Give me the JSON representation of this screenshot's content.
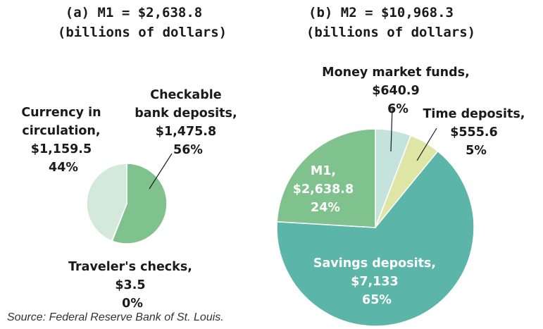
{
  "chart_data": [
    {
      "type": "pie",
      "title": "(a) M1 = $2,638.8",
      "subtitle": "(billions of dollars)",
      "slices": [
        {
          "label": "Checkable bank deposits,",
          "value": 1475.8,
          "value_text": "$1,475.8",
          "pct_text": "56%",
          "color": "#7fc28e"
        },
        {
          "label": "Traveler's checks,",
          "value": 3.5,
          "value_text": "$3.5",
          "pct_text": "0%",
          "color": "#5a8f68"
        },
        {
          "label": "Currency in circulation,",
          "value": 1159.5,
          "value_text": "$1,159.5",
          "pct_text": "44%",
          "color": "#d3eadb"
        }
      ],
      "label_lines": {
        "checkable": [
          "Checkable",
          "bank deposits,",
          "$1,475.8",
          "56%"
        ],
        "travelers": [
          "Traveler's checks,",
          "$3.5",
          "0%"
        ],
        "currency": [
          "Currency in",
          "circulation,",
          "$1,159.5",
          "44%"
        ]
      }
    },
    {
      "type": "pie",
      "title": "(b) M2 = $10,968.3",
      "subtitle": "(billions of dollars)",
      "slices": [
        {
          "label": "Money market funds,",
          "value": 640.9,
          "value_text": "$640.9",
          "pct_text": "6%",
          "color": "#c4e3dc"
        },
        {
          "label": "Time deposits,",
          "value": 555.6,
          "value_text": "$555.6",
          "pct_text": "5%",
          "color": "#dde6a4"
        },
        {
          "label": "Savings deposits,",
          "value": 7133,
          "value_text": "$7,133",
          "pct_text": "65%",
          "color": "#5bb5a8"
        },
        {
          "label": "M1,",
          "value": 2638.8,
          "value_text": "$2,638.8",
          "pct_text": "24%",
          "color": "#7fc28e"
        }
      ],
      "label_lines": {
        "mmf": [
          "Money market funds,",
          "$640.9",
          "6%"
        ],
        "time": [
          "Time deposits,",
          "$555.6",
          "5%"
        ],
        "savings": [
          "Savings deposits,",
          "$7,133",
          "65%"
        ],
        "m1": [
          "M1,",
          "$2,638.8",
          "24%"
        ]
      }
    }
  ],
  "source": "Source: Federal Reserve Bank of St. Louis."
}
